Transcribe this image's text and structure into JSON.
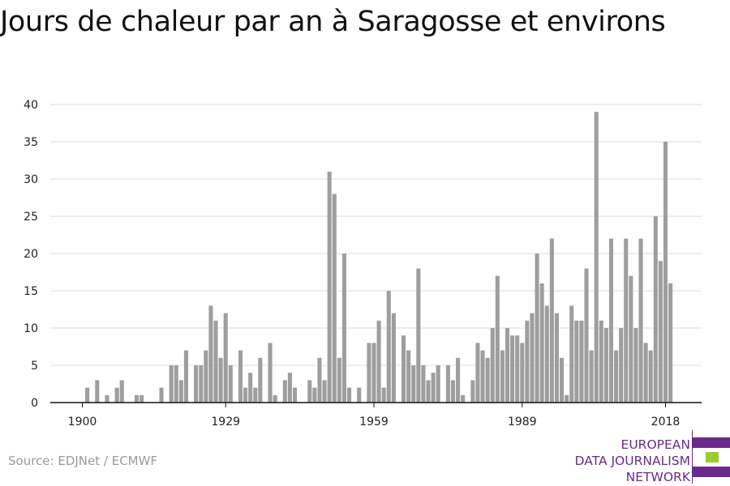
{
  "title": "Jours de chaleur par an à Saragosse et environs",
  "source": "Source: EDJNet / ECMWF",
  "logo": {
    "lines": [
      "EUROPEAN",
      "DATA JOURNALISM",
      "NETWORK"
    ],
    "colors": {
      "purple": "#6a2a8c",
      "green": "#9acd32"
    }
  },
  "chart_data": {
    "type": "bar",
    "title": "Jours de chaleur par an à Saragosse et environs",
    "xlabel": "",
    "ylabel": "",
    "ylim": [
      0,
      40
    ],
    "yticks": [
      0,
      5,
      10,
      15,
      20,
      25,
      30,
      35,
      40
    ],
    "xticks": [
      1900,
      1929,
      1959,
      1989,
      2018
    ],
    "grid": true,
    "bar_color": "#9e9e9e",
    "x": [
      1900,
      1901,
      1902,
      1903,
      1904,
      1905,
      1906,
      1907,
      1908,
      1909,
      1910,
      1911,
      1912,
      1913,
      1914,
      1915,
      1916,
      1917,
      1918,
      1919,
      1920,
      1921,
      1922,
      1923,
      1924,
      1925,
      1926,
      1927,
      1928,
      1929,
      1930,
      1931,
      1932,
      1933,
      1934,
      1935,
      1936,
      1937,
      1938,
      1939,
      1940,
      1941,
      1942,
      1943,
      1944,
      1945,
      1946,
      1947,
      1948,
      1949,
      1950,
      1951,
      1952,
      1953,
      1954,
      1955,
      1956,
      1957,
      1958,
      1959,
      1960,
      1961,
      1962,
      1963,
      1964,
      1965,
      1966,
      1967,
      1968,
      1969,
      1970,
      1971,
      1972,
      1973,
      1974,
      1975,
      1976,
      1977,
      1978,
      1979,
      1980,
      1981,
      1982,
      1983,
      1984,
      1985,
      1986,
      1987,
      1988,
      1989,
      1990,
      1991,
      1992,
      1993,
      1994,
      1995,
      1996,
      1997,
      1998,
      1999,
      2000,
      2001,
      2002,
      2003,
      2004,
      2005,
      2006,
      2007,
      2008,
      2009,
      2010,
      2011,
      2012,
      2013,
      2014,
      2015,
      2016,
      2017,
      2018,
      2019
    ],
    "values": [
      0,
      2,
      0,
      3,
      0,
      1,
      0,
      2,
      3,
      0,
      0,
      1,
      1,
      0,
      0,
      0,
      2,
      0,
      5,
      5,
      3,
      7,
      0,
      5,
      5,
      7,
      13,
      11,
      6,
      12,
      5,
      0,
      7,
      2,
      4,
      2,
      6,
      0,
      8,
      1,
      0,
      3,
      4,
      2,
      0,
      0,
      3,
      2,
      6,
      3,
      31,
      28,
      6,
      20,
      2,
      0,
      2,
      0,
      8,
      8,
      11,
      2,
      15,
      12,
      0,
      9,
      7,
      5,
      18,
      5,
      3,
      4,
      5,
      0,
      5,
      3,
      6,
      1,
      0,
      3,
      8,
      7,
      6,
      10,
      17,
      7,
      10,
      9,
      9,
      8,
      11,
      12,
      20,
      16,
      13,
      22,
      12,
      6,
      1,
      13,
      11,
      11,
      18,
      7,
      39,
      11,
      10,
      22,
      7,
      10,
      22,
      17,
      10,
      22,
      8,
      7,
      25,
      19,
      35,
      16
    ]
  }
}
